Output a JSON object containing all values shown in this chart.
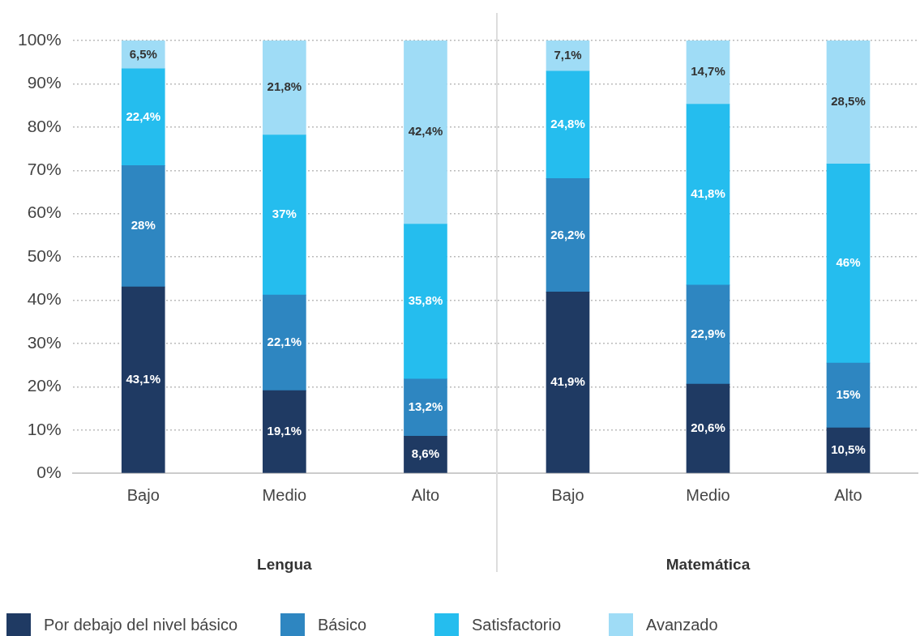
{
  "chart_data": [
    {
      "type": "bar",
      "stacked": true,
      "xlabel": "Lengua",
      "categories": [
        "Bajo",
        "Medio",
        "Alto"
      ],
      "ylim": [
        0,
        100
      ],
      "yticks": [
        {
          "value": 0,
          "label": "0%"
        },
        {
          "value": 10,
          "label": "10%"
        },
        {
          "value": 20,
          "label": "20%"
        },
        {
          "value": 30,
          "label": "30%"
        },
        {
          "value": 40,
          "label": "40%"
        },
        {
          "value": 50,
          "label": "50%"
        },
        {
          "value": 60,
          "label": "60%"
        },
        {
          "value": 70,
          "label": "70%"
        },
        {
          "value": 80,
          "label": "80%"
        },
        {
          "value": 90,
          "label": "90%"
        },
        {
          "value": 100,
          "label": "100%"
        }
      ],
      "grid": "y",
      "legend": "bottom",
      "series": [
        {
          "name": "Por debajo del nivel básico",
          "color": "#1f3a63",
          "values": [
            43.1,
            19.1,
            8.6
          ],
          "value_labels": [
            "43,1%",
            "19,1%",
            "8,6%"
          ]
        },
        {
          "name": "Básico",
          "color": "#2e86c1",
          "values": [
            28,
            22.1,
            13.2
          ],
          "value_labels": [
            "28%",
            "22,1%",
            "13,2%"
          ]
        },
        {
          "name": "Satisfactorio",
          "color": "#25bdee",
          "values": [
            22.4,
            37,
            35.8
          ],
          "value_labels": [
            "22,4%",
            "37%",
            "35,8%"
          ]
        },
        {
          "name": "Avanzado",
          "color": "#9fdcf6",
          "values": [
            6.5,
            21.8,
            42.4
          ],
          "value_labels": [
            "6,5%",
            "21,8%",
            "42,4%"
          ]
        }
      ]
    },
    {
      "type": "bar",
      "stacked": true,
      "xlabel": "Matemática",
      "categories": [
        "Bajo",
        "Medio",
        "Alto"
      ],
      "ylim": [
        0,
        100
      ],
      "yticks": [
        0,
        10,
        20,
        30,
        40,
        50,
        60,
        70,
        80,
        90,
        100
      ],
      "grid": "y",
      "tick_labels": "x",
      "series": [
        {
          "color": "#1f3a63",
          "values": [
            41.9,
            20.6,
            10.5
          ],
          "value_labels": [
            "41,9%",
            "20,6%",
            "10,5%"
          ]
        },
        {
          "color": "#2e86c1",
          "values": [
            26.2,
            22.9,
            15
          ],
          "value_labels": [
            "26,2%",
            "22,9%",
            "15%"
          ]
        },
        {
          "color": "#25bdee",
          "values": [
            24.8,
            41.8,
            46
          ],
          "value_labels": [
            "24,8%",
            "41,8%",
            "46%"
          ]
        },
        {
          "color": "#9fdcf6",
          "values": [
            7.1,
            14.7,
            28.5
          ],
          "value_labels": [
            "7,1%",
            "14,7%",
            "28,5%"
          ]
        }
      ]
    }
  ]
}
